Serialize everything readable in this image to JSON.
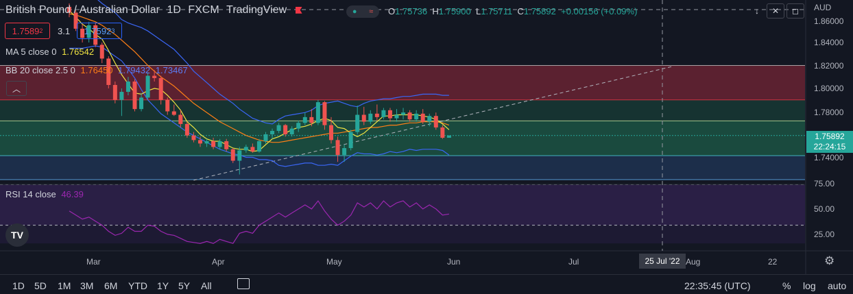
{
  "header": {
    "symbol": "British Pound / Australian Dollar",
    "interval": "1D",
    "exchange": "FXCM",
    "source": "TradingView",
    "pill_label": "≈",
    "ohlc": {
      "o_label": "O",
      "o": "1.75736",
      "h_label": "H",
      "h": "1.75900",
      "l_label": "L",
      "l": "1.75711",
      "c_label": "C",
      "c": "1.75892",
      "change": "+0.00156 (+0.09%)"
    },
    "currency": "AUD"
  },
  "quote": {
    "bid_main": "1.7589",
    "bid_sup": "2",
    "spread": "3.1",
    "ask_main": "1.7592",
    "ask_sup": "3"
  },
  "indicators": {
    "ma": {
      "label": "MA 5 close 0",
      "value": "1.76542"
    },
    "bb": {
      "label": "BB 20 close 2.5 0",
      "basis": "1.76450",
      "upper": "1.79432",
      "lower": "1.73467"
    },
    "rsi": {
      "label": "RSI 14 close",
      "value": "46.39"
    }
  },
  "price_axis": {
    "ticks": [
      "1.86000",
      "1.84000",
      "1.82000",
      "1.80000",
      "1.78000",
      "1.74000"
    ],
    "last_price": "1.75892",
    "countdown": "22:24:15"
  },
  "rsi_axis": {
    "ticks": [
      "75.00",
      "50.00",
      "25.00"
    ]
  },
  "time_axis": {
    "ticks": [
      "Mar",
      "Apr",
      "May",
      "Jun",
      "Jul",
      "Aug",
      "22"
    ],
    "crosshair_label": "25 Jul '22"
  },
  "toolbar": {
    "timeframes": [
      "1D",
      "5D",
      "1M",
      "3M",
      "6M",
      "YTD",
      "1Y",
      "5Y",
      "All"
    ],
    "clock": "22:35:45 (UTC)",
    "percent": "%",
    "log": "log",
    "auto": "auto"
  },
  "colors": {
    "up": "#26a69a",
    "down": "#ef5350",
    "bb_band": "#3a66f5",
    "ma": "#f0e442",
    "basis": "#ff7f16",
    "rsi": "#9c27b0",
    "zone_red": "#5b2130",
    "zone_green": "#1a4a3e",
    "zone_blue": "#1c2e4a"
  },
  "chart_data": {
    "type": "candlestick",
    "note_ranges": {
      "price_ylim": [
        1.72,
        1.87
      ],
      "rsi_ylim": [
        0,
        100
      ]
    },
    "candles": [
      {
        "o": 1.871,
        "h": 1.874,
        "l": 1.862,
        "c": 1.866
      },
      {
        "o": 1.866,
        "h": 1.868,
        "l": 1.85,
        "c": 1.852
      },
      {
        "o": 1.852,
        "h": 1.856,
        "l": 1.84,
        "c": 1.844
      },
      {
        "o": 1.844,
        "h": 1.858,
        "l": 1.84,
        "c": 1.855
      },
      {
        "o": 1.855,
        "h": 1.857,
        "l": 1.836,
        "c": 1.838
      },
      {
        "o": 1.838,
        "h": 1.84,
        "l": 1.822,
        "c": 1.826
      },
      {
        "o": 1.826,
        "h": 1.828,
        "l": 1.8,
        "c": 1.803
      },
      {
        "o": 1.803,
        "h": 1.806,
        "l": 1.787,
        "c": 1.79
      },
      {
        "o": 1.79,
        "h": 1.8,
        "l": 1.776,
        "c": 1.797
      },
      {
        "o": 1.797,
        "h": 1.81,
        "l": 1.794,
        "c": 1.806
      },
      {
        "o": 1.806,
        "h": 1.808,
        "l": 1.78,
        "c": 1.782
      },
      {
        "o": 1.782,
        "h": 1.796,
        "l": 1.78,
        "c": 1.792
      },
      {
        "o": 1.792,
        "h": 1.814,
        "l": 1.79,
        "c": 1.811
      },
      {
        "o": 1.811,
        "h": 1.816,
        "l": 1.806,
        "c": 1.809
      },
      {
        "o": 1.809,
        "h": 1.811,
        "l": 1.786,
        "c": 1.79
      },
      {
        "o": 1.79,
        "h": 1.792,
        "l": 1.777,
        "c": 1.78
      },
      {
        "o": 1.78,
        "h": 1.786,
        "l": 1.776,
        "c": 1.777
      },
      {
        "o": 1.777,
        "h": 1.781,
        "l": 1.766,
        "c": 1.769
      },
      {
        "o": 1.769,
        "h": 1.771,
        "l": 1.757,
        "c": 1.759
      },
      {
        "o": 1.759,
        "h": 1.762,
        "l": 1.753,
        "c": 1.755
      },
      {
        "o": 1.755,
        "h": 1.758,
        "l": 1.749,
        "c": 1.752
      },
      {
        "o": 1.752,
        "h": 1.756,
        "l": 1.749,
        "c": 1.754
      },
      {
        "o": 1.754,
        "h": 1.757,
        "l": 1.747,
        "c": 1.749
      },
      {
        "o": 1.749,
        "h": 1.756,
        "l": 1.747,
        "c": 1.754
      },
      {
        "o": 1.754,
        "h": 1.756,
        "l": 1.745,
        "c": 1.747
      },
      {
        "o": 1.747,
        "h": 1.748,
        "l": 1.735,
        "c": 1.737
      },
      {
        "o": 1.737,
        "h": 1.749,
        "l": 1.725,
        "c": 1.746
      },
      {
        "o": 1.746,
        "h": 1.751,
        "l": 1.744,
        "c": 1.749
      },
      {
        "o": 1.749,
        "h": 1.752,
        "l": 1.744,
        "c": 1.745
      },
      {
        "o": 1.745,
        "h": 1.756,
        "l": 1.744,
        "c": 1.754
      },
      {
        "o": 1.754,
        "h": 1.762,
        "l": 1.752,
        "c": 1.76
      },
      {
        "o": 1.76,
        "h": 1.765,
        "l": 1.756,
        "c": 1.763
      },
      {
        "o": 1.763,
        "h": 1.77,
        "l": 1.761,
        "c": 1.768
      },
      {
        "o": 1.768,
        "h": 1.769,
        "l": 1.758,
        "c": 1.76
      },
      {
        "o": 1.76,
        "h": 1.767,
        "l": 1.758,
        "c": 1.765
      },
      {
        "o": 1.765,
        "h": 1.772,
        "l": 1.762,
        "c": 1.77
      },
      {
        "o": 1.77,
        "h": 1.779,
        "l": 1.768,
        "c": 1.775
      },
      {
        "o": 1.775,
        "h": 1.782,
        "l": 1.767,
        "c": 1.77
      },
      {
        "o": 1.77,
        "h": 1.79,
        "l": 1.768,
        "c": 1.788
      },
      {
        "o": 1.788,
        "h": 1.789,
        "l": 1.764,
        "c": 1.768
      },
      {
        "o": 1.768,
        "h": 1.775,
        "l": 1.752,
        "c": 1.755
      },
      {
        "o": 1.755,
        "h": 1.758,
        "l": 1.736,
        "c": 1.742
      },
      {
        "o": 1.742,
        "h": 1.751,
        "l": 1.736,
        "c": 1.748
      },
      {
        "o": 1.748,
        "h": 1.764,
        "l": 1.746,
        "c": 1.762
      },
      {
        "o": 1.762,
        "h": 1.785,
        "l": 1.76,
        "c": 1.777
      },
      {
        "o": 1.777,
        "h": 1.784,
        "l": 1.768,
        "c": 1.771
      },
      {
        "o": 1.771,
        "h": 1.781,
        "l": 1.769,
        "c": 1.778
      },
      {
        "o": 1.778,
        "h": 1.786,
        "l": 1.772,
        "c": 1.775
      },
      {
        "o": 1.775,
        "h": 1.783,
        "l": 1.773,
        "c": 1.781
      },
      {
        "o": 1.781,
        "h": 1.783,
        "l": 1.771,
        "c": 1.774
      },
      {
        "o": 1.774,
        "h": 1.782,
        "l": 1.771,
        "c": 1.777
      },
      {
        "o": 1.777,
        "h": 1.783,
        "l": 1.773,
        "c": 1.779
      },
      {
        "o": 1.779,
        "h": 1.781,
        "l": 1.771,
        "c": 1.773
      },
      {
        "o": 1.773,
        "h": 1.781,
        "l": 1.771,
        "c": 1.778
      },
      {
        "o": 1.778,
        "h": 1.782,
        "l": 1.769,
        "c": 1.771
      },
      {
        "o": 1.771,
        "h": 1.778,
        "l": 1.767,
        "c": 1.776
      },
      {
        "o": 1.776,
        "h": 1.779,
        "l": 1.764,
        "c": 1.766
      },
      {
        "o": 1.766,
        "h": 1.768,
        "l": 1.756,
        "c": 1.757
      },
      {
        "o": 1.757,
        "h": 1.759,
        "l": 1.757,
        "c": 1.759
      }
    ],
    "ma5": [
      1.868,
      1.862,
      1.856,
      1.852,
      1.847,
      1.843,
      1.833,
      1.822,
      1.812,
      1.804,
      1.796,
      1.795,
      1.798,
      1.8,
      1.799,
      1.794,
      1.788,
      1.781,
      1.771,
      1.766,
      1.76,
      1.756,
      1.754,
      1.754,
      1.751,
      1.748,
      1.747,
      1.747,
      1.745,
      1.746,
      1.751,
      1.756,
      1.758,
      1.761,
      1.764,
      1.766,
      1.767,
      1.769,
      1.772,
      1.774,
      1.772,
      1.766,
      1.765,
      1.761,
      1.758,
      1.761,
      1.766,
      1.771,
      1.776,
      1.776,
      1.777,
      1.777,
      1.777,
      1.777,
      1.776,
      1.775,
      1.773,
      1.769,
      1.764
    ],
    "bb_basis": [
      1.865,
      1.864,
      1.862,
      1.86,
      1.858,
      1.855,
      1.851,
      1.847,
      1.842,
      1.837,
      1.832,
      1.826,
      1.82,
      1.815,
      1.81,
      1.806,
      1.802,
      1.797,
      1.792,
      1.787,
      1.783,
      1.779,
      1.775,
      1.771,
      1.768,
      1.765,
      1.762,
      1.759,
      1.757,
      1.755,
      1.754,
      1.753,
      1.753,
      1.754,
      1.755,
      1.756,
      1.757,
      1.758,
      1.759,
      1.76,
      1.761,
      1.761,
      1.762,
      1.763,
      1.764,
      1.765,
      1.766,
      1.766,
      1.767,
      1.768,
      1.768,
      1.769,
      1.77,
      1.77,
      1.771,
      1.771,
      1.771,
      1.77,
      1.768
    ],
    "bb_upper": [
      1.895,
      1.893,
      1.889,
      1.884,
      1.879,
      1.874,
      1.87,
      1.866,
      1.86,
      1.857,
      1.855,
      1.853,
      1.85,
      1.846,
      1.842,
      1.838,
      1.834,
      1.828,
      1.822,
      1.815,
      1.81,
      1.805,
      1.8,
      1.795,
      1.791,
      1.787,
      1.782,
      1.778,
      1.774,
      1.772,
      1.77,
      1.769,
      1.773,
      1.776,
      1.777,
      1.778,
      1.779,
      1.781,
      1.785,
      1.787,
      1.788,
      1.789,
      1.787,
      1.785,
      1.784,
      1.787,
      1.789,
      1.79,
      1.791,
      1.791,
      1.792,
      1.793,
      1.793,
      1.794,
      1.795,
      1.795,
      1.795,
      1.794,
      1.794
    ],
    "bb_lower": [
      1.835,
      1.835,
      1.835,
      1.836,
      1.837,
      1.836,
      1.832,
      1.828,
      1.824,
      1.817,
      1.809,
      1.799,
      1.79,
      1.784,
      1.778,
      1.774,
      1.77,
      1.766,
      1.762,
      1.759,
      1.756,
      1.753,
      1.75,
      1.747,
      1.745,
      1.743,
      1.742,
      1.74,
      1.74,
      1.738,
      1.738,
      1.737,
      1.733,
      1.732,
      1.733,
      1.734,
      1.735,
      1.735,
      1.733,
      1.733,
      1.734,
      1.733,
      1.737,
      1.741,
      1.744,
      1.743,
      1.743,
      1.742,
      1.743,
      1.745,
      1.744,
      1.745,
      1.747,
      1.746,
      1.747,
      1.747,
      1.747,
      1.746,
      1.742
    ],
    "rsi": [
      44,
      40,
      36,
      38,
      34,
      30,
      24,
      20,
      22,
      28,
      24,
      24,
      30,
      29,
      24,
      21,
      20,
      17,
      14,
      13,
      12,
      14,
      12,
      16,
      14,
      12,
      22,
      24,
      22,
      30,
      34,
      38,
      42,
      38,
      42,
      46,
      50,
      46,
      54,
      44,
      36,
      30,
      34,
      40,
      52,
      48,
      52,
      46,
      54,
      48,
      52,
      54,
      48,
      52,
      46,
      50,
      46,
      40,
      41
    ],
    "levels": {
      "resistance": 1.82,
      "zone_top": 1.79,
      "mid": 1.7717,
      "support_high": 1.759,
      "support_mid": 1.7414,
      "support_low": 1.7205
    },
    "trendline": {
      "from": {
        "bar": 19,
        "price": 1.72
      },
      "to": {
        "bar": 92,
        "price": 1.819
      }
    }
  }
}
